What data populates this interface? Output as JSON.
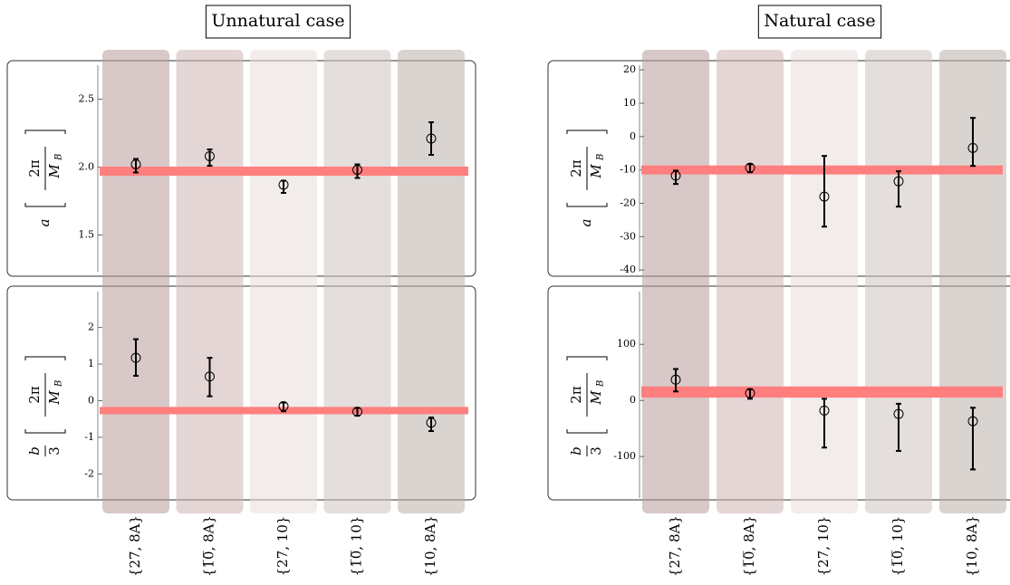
{
  "chart_data": [
    {
      "type": "errorbar",
      "title": "Unnatural case",
      "ylabel": {
        "symbol": "a",
        "numerator": "2π",
        "denominator": "M",
        "denominator_sub": "B"
      },
      "values": [
        2.02,
        2.08,
        1.87,
        1.98,
        2.21
      ],
      "err_minus": [
        0.06,
        0.07,
        0.06,
        0.06,
        0.12
      ],
      "err_plus": [
        0.04,
        0.05,
        0.03,
        0.04,
        0.12
      ],
      "band": {
        "center": 1.97,
        "height": 0.067
      },
      "band_color": "#ff7f7f",
      "ylim": [
        1.23,
        2.75
      ],
      "yticks": [
        1.5,
        {
          "value": 2,
          "label": "2.0"
        },
        2.5
      ]
    },
    {
      "type": "errorbar",
      "ylabel": {
        "symbol": "b",
        "symbol_denominator": "3",
        "numerator": "2π",
        "denominator": "M",
        "denominator_sub": "B"
      },
      "categories": [
        "{27, 8A}",
        "{1̅0̅, 8A}",
        "{27, 10}",
        "{1̅0̅, 10}",
        "{10, 8A}"
      ],
      "values": [
        1.17,
        0.66,
        -0.15,
        -0.3,
        -0.6
      ],
      "err_minus": [
        0.49,
        0.54,
        0.14,
        0.11,
        0.23
      ],
      "err_plus": [
        0.51,
        0.51,
        0.1,
        0.1,
        0.14
      ],
      "band": {
        "center": -0.27,
        "height": 0.2
      },
      "band_color": "#ff7f7f",
      "ylim": [
        -2.66,
        2.98
      ],
      "yticks": [
        2,
        1,
        0,
        -1,
        -2
      ]
    },
    {
      "type": "errorbar",
      "title": "Natural case",
      "ylabel": {
        "symbol": "a",
        "numerator": "2π",
        "denominator": "M",
        "denominator_sub": "B"
      },
      "values": [
        -11.7,
        -9.3,
        -18,
        -13.4,
        -3.4
      ],
      "err_minus": [
        2.5,
        1.4,
        9,
        7.6,
        5.4
      ],
      "err_plus": [
        1.5,
        1,
        12.2,
        3,
        9
      ],
      "band": {
        "center": -10,
        "height": 2.7
      },
      "band_color": "#ff7f7f",
      "ylim": [
        -40.5,
        21.4
      ],
      "yticks": [
        20,
        10,
        0,
        -10,
        -20,
        -30,
        -40
      ]
    },
    {
      "type": "errorbar",
      "ylabel": {
        "symbol": "b",
        "symbol_denominator": "3",
        "numerator": "2π",
        "denominator": "M",
        "denominator_sub": "B"
      },
      "categories": [
        "{27, 8A}",
        "{1̅0̅, 8A}",
        "{27, 10}",
        "{1̅0̅, 10}",
        "{10, 8A}"
      ],
      "values": [
        37,
        13,
        -18,
        -24,
        -37
      ],
      "err_minus": [
        21,
        10,
        66,
        66,
        86
      ],
      "err_plus": [
        19,
        7,
        21,
        18,
        24
      ],
      "band": {
        "center": 15,
        "height": 20
      },
      "band_color": "#ff7f7f",
      "ylim": [
        -174,
        194
      ],
      "yticks": [
        100,
        0,
        -100
      ]
    }
  ]
}
